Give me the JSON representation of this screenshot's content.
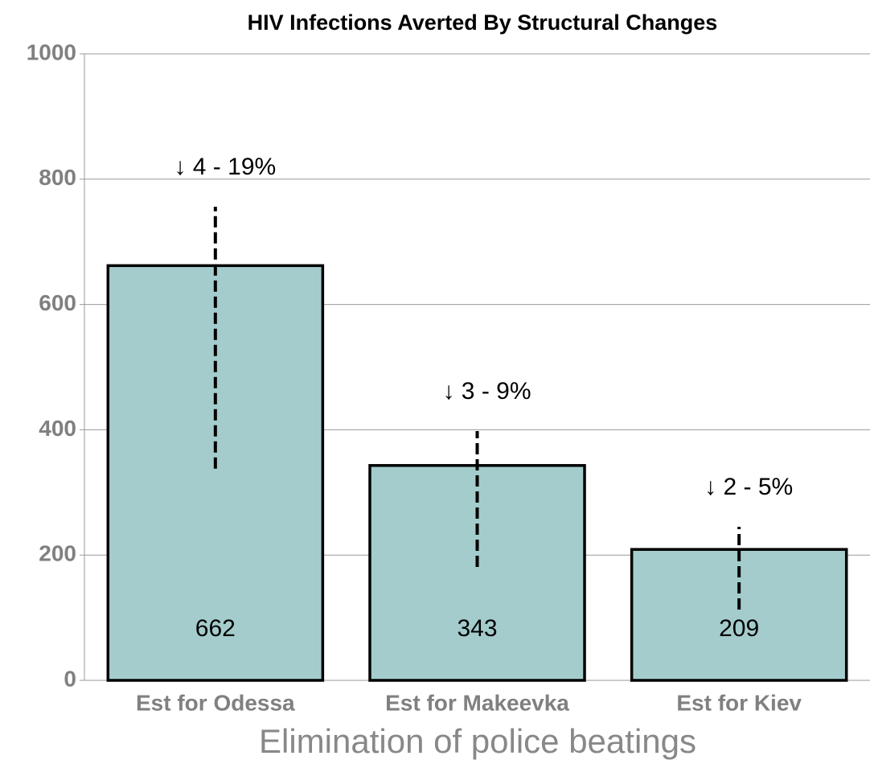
{
  "chart_data": {
    "type": "bar",
    "title": "HIV Infections Averted By Structural Changes",
    "x_label": "Elimination of police beatings",
    "categories": [
      "Est for Odessa",
      "Est for Makeevka",
      "Est for Kiev"
    ],
    "values": [
      662,
      343,
      209
    ],
    "error_low": [
      338,
      181,
      113
    ],
    "error_high": [
      756,
      398,
      245
    ],
    "annotations": [
      "↓ 4 - 19%",
      "↓ 3 - 9%",
      "↓ 2 - 5%"
    ],
    "color": "#a4cccc",
    "ylim": [
      0,
      1000
    ],
    "yticks": [
      0,
      200,
      400,
      600,
      800,
      1000
    ],
    "grid": true
  }
}
